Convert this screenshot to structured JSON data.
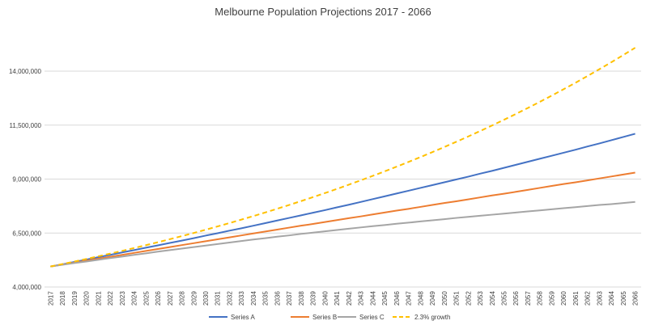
{
  "chart_data": {
    "type": "line",
    "title": "Melbourne Population Projections 2017 - 2066",
    "xlabel": "",
    "ylabel": "",
    "ylim": [
      4000000,
      14000000
    ],
    "y_ticks": [
      "4,000,000",
      "6,500,000",
      "9,000,000",
      "11,500,000",
      "14,000,000"
    ],
    "y_tick_values": [
      4000000,
      6500000,
      9000000,
      11500000,
      14000000
    ],
    "grid": "horizontal",
    "legend": "bottom",
    "x": [
      2017,
      2018,
      2019,
      2020,
      2021,
      2022,
      2023,
      2024,
      2025,
      2026,
      2027,
      2028,
      2029,
      2030,
      2031,
      2032,
      2033,
      2034,
      2035,
      2036,
      2037,
      2038,
      2039,
      2040,
      2041,
      2042,
      2043,
      2044,
      2045,
      2046,
      2047,
      2048,
      2049,
      2050,
      2051,
      2052,
      2053,
      2054,
      2055,
      2056,
      2057,
      2058,
      2059,
      2060,
      2061,
      2062,
      2063,
      2064,
      2065,
      2066
    ],
    "series": [
      {
        "name": "Series A",
        "color": "#4472c4",
        "dash": "solid",
        "values": [
          4950000,
          5050000,
          5160000,
          5270000,
          5380000,
          5490000,
          5600000,
          5710000,
          5820000,
          5930000,
          6040000,
          6150000,
          6260000,
          6380000,
          6490000,
          6610000,
          6720000,
          6840000,
          6960000,
          7080000,
          7200000,
          7320000,
          7440000,
          7560000,
          7690000,
          7810000,
          7940000,
          8070000,
          8200000,
          8330000,
          8460000,
          8590000,
          8720000,
          8850000,
          8980000,
          9110000,
          9250000,
          9380000,
          9520000,
          9660000,
          9800000,
          9940000,
          10080000,
          10220000,
          10360000,
          10510000,
          10650000,
          10800000,
          10950000,
          11100000
        ]
      },
      {
        "name": "Series B",
        "color": "#ed7d31",
        "dash": "solid",
        "values": [
          4950000,
          5040000,
          5130000,
          5220000,
          5310000,
          5400000,
          5490000,
          5580000,
          5670000,
          5760000,
          5850000,
          5940000,
          6030000,
          6120000,
          6210000,
          6300000,
          6390000,
          6480000,
          6570000,
          6660000,
          6750000,
          6840000,
          6920000,
          7010000,
          7100000,
          7190000,
          7270000,
          7360000,
          7450000,
          7540000,
          7620000,
          7710000,
          7800000,
          7890000,
          7970000,
          8060000,
          8150000,
          8240000,
          8320000,
          8410000,
          8500000,
          8590000,
          8680000,
          8770000,
          8850000,
          8940000,
          9030000,
          9120000,
          9210000,
          9300000
        ]
      },
      {
        "name": "Series C",
        "color": "#a5a5a5",
        "dash": "solid",
        "values": [
          4950000,
          5030000,
          5110000,
          5180000,
          5260000,
          5340000,
          5410000,
          5490000,
          5560000,
          5640000,
          5710000,
          5780000,
          5850000,
          5920000,
          5990000,
          6060000,
          6130000,
          6200000,
          6260000,
          6330000,
          6390000,
          6460000,
          6520000,
          6580000,
          6640000,
          6700000,
          6760000,
          6820000,
          6870000,
          6930000,
          6980000,
          7040000,
          7090000,
          7140000,
          7200000,
          7250000,
          7300000,
          7350000,
          7400000,
          7450000,
          7500000,
          7550000,
          7600000,
          7650000,
          7700000,
          7750000,
          7800000,
          7840000,
          7890000,
          7940000
        ]
      },
      {
        "name": "2.3% growth",
        "color": "#ffc000",
        "dash": "dashed",
        "values": [
          4950000,
          5063850,
          5180319,
          5299466,
          5421354,
          5546045,
          5673604,
          5804097,
          5937591,
          6074155,
          6213860,
          6356779,
          6502985,
          6652554,
          6805563,
          6962091,
          7122219,
          7286030,
          7453608,
          7625041,
          7800417,
          7979826,
          8163362,
          8351119,
          8543195,
          8739688,
          8940701,
          9146337,
          9356703,
          9571907,
          9792061,
          10017278,
          10247676,
          10483372,
          10724490,
          10971153,
          11223490,
          11481630,
          11745708,
          12015859,
          12292224,
          12574945,
          12864168,
          13160044,
          13462725,
          13772368,
          14089132,
          14413182,
          14744685,
          15083813
        ]
      }
    ]
  }
}
